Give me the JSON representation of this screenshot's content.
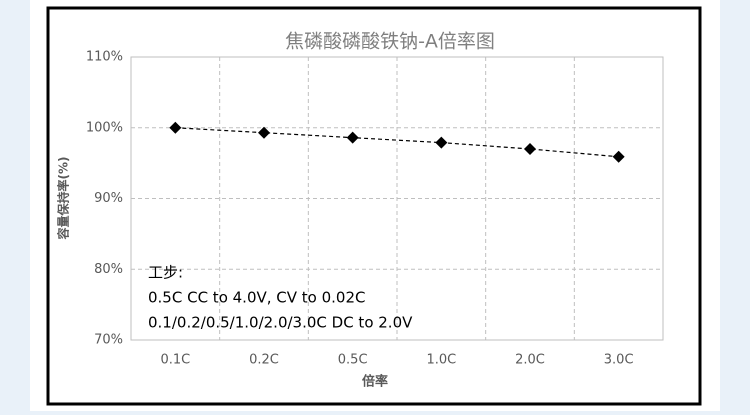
{
  "chart_data": {
    "type": "line",
    "title": "焦磷酸磷酸铁钠-A倍率图",
    "x_label": "倍率",
    "y_label": "容量保持率(%)",
    "categories": [
      "0.1C",
      "0.2C",
      "0.5C",
      "1.0C",
      "2.0C",
      "3.0C"
    ],
    "series": [
      {
        "color": "#000000",
        "values": [
          100.0,
          99.3,
          98.6,
          97.9,
          97.0,
          95.9
        ]
      }
    ],
    "ylim": [
      70,
      110
    ],
    "yticks": [
      {
        "value": 70,
        "label": "70%"
      },
      {
        "value": 80,
        "label": "80%"
      },
      {
        "value": 90,
        "label": "90%"
      },
      {
        "value": 100,
        "label": "100%"
      },
      {
        "value": 110,
        "label": "110%"
      }
    ],
    "grid": true,
    "annotations": [
      "工步:",
      "0.5C CC to 4.0V, CV to 0.02C",
      "0.1/0.2/0.5/1.0/2.0/3.0C DC to 2.0V"
    ]
  }
}
